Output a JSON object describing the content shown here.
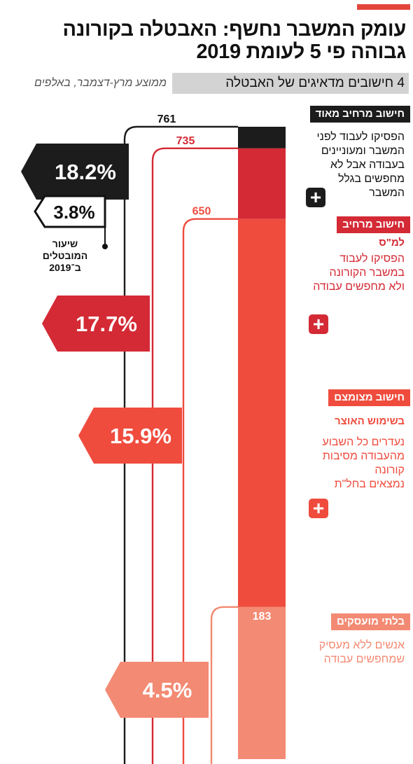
{
  "headline": "עומק המשבר נחשף: האבטלה בקורונה גבוהה פי 5 לעומת 2019",
  "subtitle": "4 חישובים מדאיגים של האבטלה",
  "subtitle_note": "ממוצע מרץ-דצמבר, באלפים",
  "base_note": "שיעור המובטלים ב־2019",
  "colors": {
    "very_broad": "#1c1c1c",
    "broad": "#d42a35",
    "narrow": "#ef4c3e",
    "unemployed": "#f38a73",
    "accent": "#e3463a"
  },
  "categories": [
    {
      "label": "חישוב מרחיב מאוד",
      "sub": "",
      "desc": [
        "הפסיקו לעבוד לפני",
        "המשבר ומעוניינים",
        "בעבודה אבל לא",
        "מחפשים בגלל",
        "המשבר"
      ]
    },
    {
      "label": "חישוב מרחיב",
      "sub": "למ\"ס",
      "desc": [
        "הפסיקו לעבוד",
        "במשבר הקורונה",
        "ולא מחפשים עבודה"
      ]
    },
    {
      "label": "חישוב מצומצם",
      "sub": "בשימוש האוצר",
      "desc": [
        "נעדרים כל השבוע",
        "מהעבודה מסיבות",
        "קורונה",
        "נמצאים בחל\"ת"
      ]
    },
    {
      "label": "בלתי מועסקים",
      "sub": "",
      "desc": [
        "אנשים ללא מעסיק",
        "שמחפשים עבודה"
      ]
    }
  ],
  "chart_data": {
    "type": "bar",
    "title": "עומק המשבר נחשף: האבטלה בקורונה גבוהה פי 5 לעומת 2019",
    "subtitle": "4 חישובים מדאיגים של האבטלה",
    "unit": "ממוצע מרץ-דצמבר, באלפים",
    "stacked": true,
    "categories": [
      "חישוב מרחיב מאוד",
      "חישוב מרחיב",
      "חישוב מצומצם",
      "בלתי מועסקים"
    ],
    "values": [
      761,
      735,
      650,
      183
    ],
    "value_labels": [
      "761",
      "735",
      "650",
      "183"
    ],
    "rates": [
      "18.2%",
      "17.7%",
      "15.9%",
      "4.5%"
    ],
    "rates_numeric": [
      18.2,
      17.7,
      15.9,
      4.5
    ],
    "baseline_2019_rate": "3.8%",
    "ylim": [
      0,
      761
    ]
  }
}
